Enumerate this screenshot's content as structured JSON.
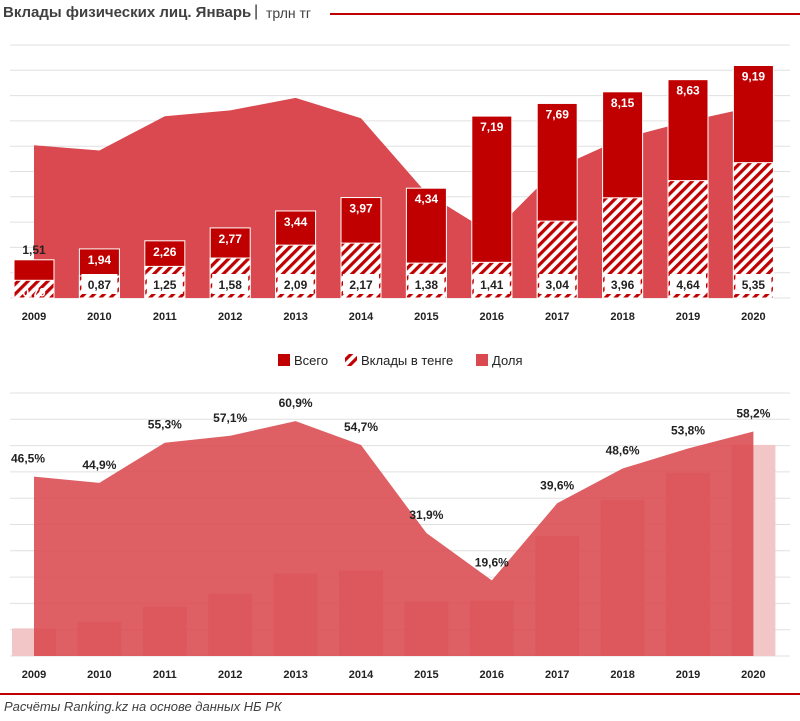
{
  "header": {
    "title": "Вклады физических лиц. Январь",
    "separator": "|",
    "unit": "трлн тг"
  },
  "footer": {
    "source": "Расчёты Ranking.kz на основе данных НБ РК"
  },
  "colors": {
    "total": "#c00000",
    "tenge_hatch": "#c00000",
    "share_area": "#d9494f",
    "share_bar": "#f2c6c6",
    "grid": "#e0e0e0"
  },
  "chart_data": [
    {
      "type": "bar",
      "title": "Вклады физических лиц. Январь",
      "ylabel": "трлн тг",
      "categories": [
        "2009",
        "2010",
        "2011",
        "2012",
        "2013",
        "2014",
        "2015",
        "2016",
        "2017",
        "2018",
        "2019",
        "2020"
      ],
      "series": [
        {
          "name": "Всего",
          "values": [
            1.51,
            1.94,
            2.26,
            2.77,
            3.44,
            3.97,
            4.34,
            7.19,
            7.69,
            8.15,
            8.63,
            9.19
          ],
          "labels": [
            "1,51",
            "1,94",
            "2,26",
            "2,77",
            "3,44",
            "3,97",
            "4,34",
            "7,19",
            "7,69",
            "8,15",
            "8,63",
            "9,19"
          ]
        },
        {
          "name": "Вклады в тенге",
          "values": [
            0.7,
            0.87,
            1.25,
            1.58,
            2.09,
            2.17,
            1.38,
            1.41,
            3.04,
            3.96,
            4.64,
            5.35
          ],
          "labels": [
            "0,70",
            "0,87",
            "1,25",
            "1,58",
            "2,09",
            "2,17",
            "1,38",
            "1,41",
            "3,04",
            "3,96",
            "4,64",
            "5,35"
          ]
        },
        {
          "name": "Доля",
          "type": "area",
          "values": [
            46.5,
            44.9,
            55.3,
            57.1,
            60.9,
            54.7,
            31.9,
            19.6,
            39.6,
            48.6,
            53.8,
            58.2
          ]
        }
      ],
      "ylim": [
        0,
        10
      ],
      "share_ylim": [
        0,
        70
      ],
      "legend": [
        "Всего",
        "Вклады в тенге",
        "Доля"
      ]
    },
    {
      "type": "area",
      "categories": [
        "2009",
        "2010",
        "2011",
        "2012",
        "2013",
        "2014",
        "2015",
        "2016",
        "2017",
        "2018",
        "2019",
        "2020"
      ],
      "series": [
        {
          "name": "Доля",
          "values": [
            46.5,
            44.9,
            55.3,
            57.1,
            60.9,
            54.7,
            31.9,
            19.6,
            39.6,
            48.6,
            53.8,
            58.2
          ],
          "labels": [
            "46,5%",
            "44,9%",
            "55,3%",
            "57,1%",
            "60,9%",
            "54,7%",
            "31,9%",
            "19,6%",
            "39,6%",
            "48,6%",
            "53,8%",
            "58,2%"
          ]
        },
        {
          "name": "Вклады в тенге",
          "type": "bar",
          "values": [
            0.7,
            0.87,
            1.25,
            1.58,
            2.09,
            2.17,
            1.38,
            1.41,
            3.04,
            3.96,
            4.64,
            5.35
          ]
        }
      ],
      "ylim": [
        0,
        70
      ]
    }
  ]
}
